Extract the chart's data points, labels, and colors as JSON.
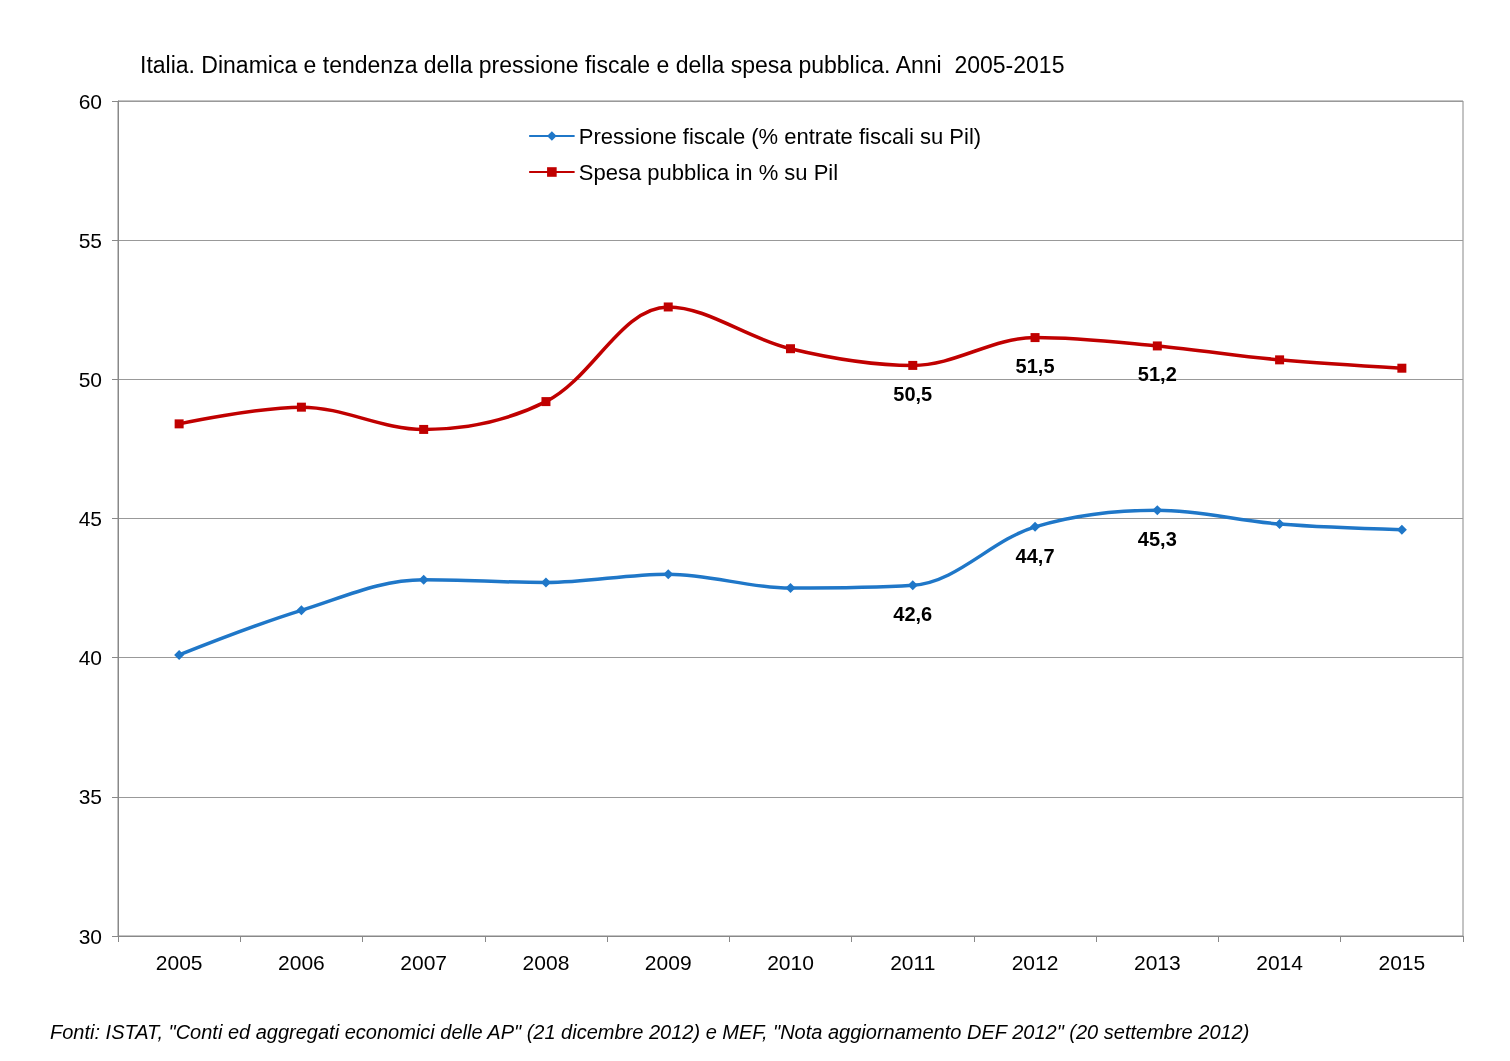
{
  "chart_data": {
    "type": "line",
    "title": "Italia. Dinamica e tendenza della pressione fiscale e della spesa pubblica. Anni  2005-2015",
    "categories": [
      "2005",
      "2006",
      "2007",
      "2008",
      "2009",
      "2010",
      "2011",
      "2012",
      "2013",
      "2014",
      "2015"
    ],
    "series": [
      {
        "name": "Pressione fiscale (% entrate fiscali su Pil)",
        "color": "#1f77c8",
        "marker": "diamond",
        "values": [
          40.1,
          41.7,
          42.8,
          42.7,
          43.0,
          42.5,
          42.6,
          44.7,
          45.3,
          44.8,
          44.6
        ],
        "value_labels": [
          null,
          null,
          null,
          null,
          null,
          null,
          "42,6",
          "44,7",
          "45,3",
          null,
          null
        ]
      },
      {
        "name": "Spesa pubblica in % su Pil",
        "color": "#c00000",
        "marker": "square",
        "values": [
          48.4,
          49.0,
          48.2,
          49.2,
          52.6,
          51.1,
          50.5,
          51.5,
          51.2,
          50.7,
          50.4
        ],
        "value_labels": [
          null,
          null,
          null,
          null,
          null,
          null,
          "50,5",
          "51,5",
          "51,2",
          null,
          null
        ]
      }
    ],
    "ylim": [
      30,
      60
    ],
    "yticks": [
      30,
      35,
      40,
      45,
      50,
      55,
      60
    ],
    "grid": "y",
    "legend": "top",
    "line_style": "solid",
    "annotations": [
      "Fonti: ISTAT, \"Conti ed aggregati economici delle AP\" (21 dicembre 2012) e MEF, \"Nota aggiornamento DEF 2012\" (20 settembre 2012)"
    ]
  }
}
